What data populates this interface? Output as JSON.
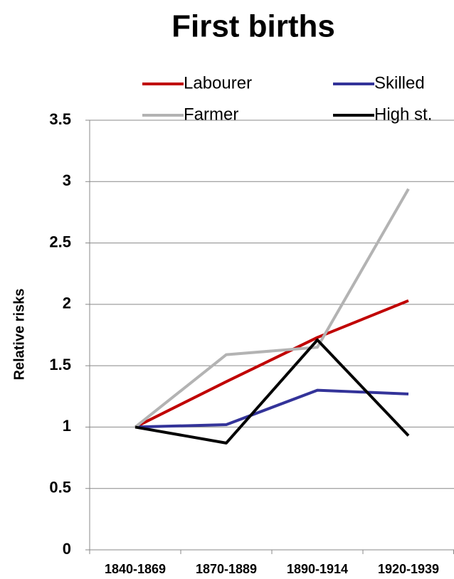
{
  "chart_data": {
    "type": "line",
    "title": "First births",
    "y_label": "Relative risks",
    "categories": [
      "1840-1869",
      "1870-1889",
      "1890-1914",
      "1920-1939"
    ],
    "series": [
      {
        "name": "Labourer",
        "color": "#c00000",
        "values": [
          1,
          1.37,
          1.73,
          2.03
        ]
      },
      {
        "name": "Skilled",
        "color": "#333399",
        "values": [
          1,
          1.02,
          1.3,
          1.27
        ]
      },
      {
        "name": "Farmer",
        "color": "#b3b3b3",
        "values": [
          1,
          1.59,
          1.65,
          2.94
        ]
      },
      {
        "name": "High st.",
        "color": "#000000",
        "values": [
          1,
          0.87,
          1.71,
          0.93
        ]
      }
    ],
    "ylim": [
      0,
      3.5
    ],
    "yticks": [
      0,
      0.5,
      1,
      1.5,
      2,
      2.5,
      3,
      3.5
    ],
    "grid": true,
    "legend": "top"
  }
}
